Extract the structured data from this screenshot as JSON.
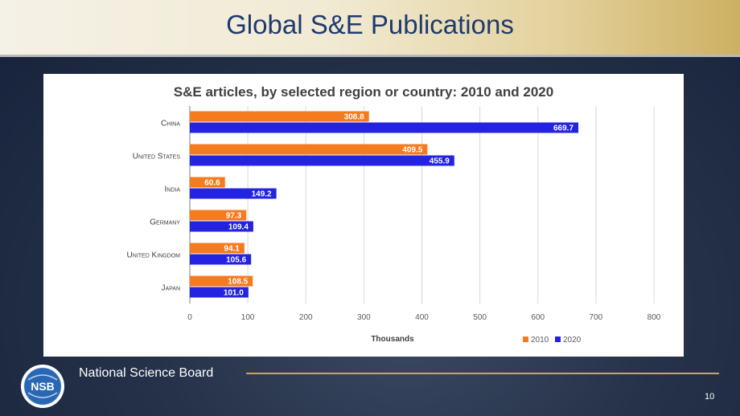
{
  "slide": {
    "title": "Global S&E Publications",
    "footer_org": "National Science Board",
    "page_number": "10",
    "logo_text": "NSB"
  },
  "chart_data": {
    "type": "bar",
    "orientation": "horizontal",
    "title": "S&E articles, by selected region or country: 2010 and 2020",
    "categories": [
      "China",
      "United States",
      "India",
      "Germany",
      "United Kingdom",
      "Japan"
    ],
    "series": [
      {
        "name": "2010",
        "color": "#f47b20",
        "values": [
          308.8,
          409.5,
          60.6,
          97.3,
          94.1,
          108.5
        ]
      },
      {
        "name": "2020",
        "color": "#2323e0",
        "values": [
          669.7,
          455.9,
          149.2,
          109.4,
          105.6,
          101.0
        ]
      }
    ],
    "xlabel": "Thousands",
    "ylabel": "",
    "xlim": [
      0,
      800
    ],
    "xticks": [
      0,
      100,
      200,
      300,
      400,
      500,
      600,
      700,
      800
    ],
    "grid": true,
    "legend": "bottom-right"
  }
}
